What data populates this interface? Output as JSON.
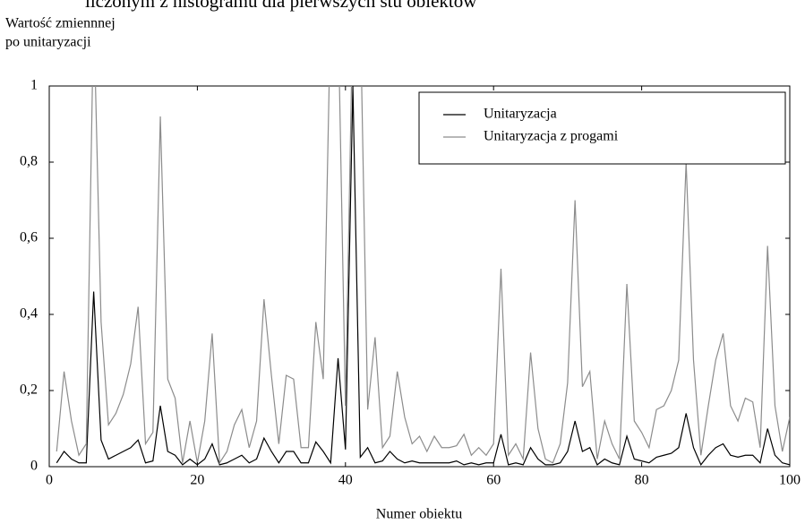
{
  "chart_data": {
    "type": "line",
    "title": "liczonym z histogramu dla pierwszych stu obiektów",
    "ylabel": [
      "Wartość zmiennnej",
      "po unitaryzacji"
    ],
    "xlabel": "Numer obiektu",
    "x": [
      1,
      2,
      3,
      4,
      5,
      6,
      7,
      8,
      9,
      10,
      11,
      12,
      13,
      14,
      15,
      16,
      17,
      18,
      19,
      20,
      21,
      22,
      23,
      24,
      25,
      26,
      27,
      28,
      29,
      30,
      31,
      32,
      33,
      34,
      35,
      36,
      37,
      38,
      39,
      40,
      41,
      42,
      43,
      44,
      45,
      46,
      47,
      48,
      49,
      50,
      51,
      52,
      53,
      54,
      55,
      56,
      57,
      58,
      59,
      60,
      61,
      62,
      63,
      64,
      65,
      66,
      67,
      68,
      69,
      70,
      71,
      72,
      73,
      74,
      75,
      76,
      77,
      78,
      79,
      80,
      81,
      82,
      83,
      84,
      85,
      86,
      87,
      88,
      89,
      90,
      91,
      92,
      93,
      94,
      95,
      96,
      97,
      98,
      99,
      100
    ],
    "series": [
      {
        "name": "Unitaryzacja",
        "color": "#000000",
        "values": [
          0.01,
          0.04,
          0.02,
          0.01,
          0.01,
          0.46,
          0.07,
          0.02,
          0.03,
          0.04,
          0.05,
          0.07,
          0.01,
          0.015,
          0.16,
          0.04,
          0.03,
          0.005,
          0.02,
          0.005,
          0.02,
          0.06,
          0.005,
          0.01,
          0.02,
          0.03,
          0.01,
          0.02,
          0.075,
          0.04,
          0.01,
          0.04,
          0.04,
          0.01,
          0.01,
          0.065,
          0.04,
          0.01,
          0.285,
          0.045,
          1,
          0.025,
          0.05,
          0.01,
          0.015,
          0.04,
          0.02,
          0.01,
          0.015,
          0.01,
          0.01,
          0.01,
          0.01,
          0.01,
          0.015,
          0.005,
          0.01,
          0.005,
          0.01,
          0.01,
          0.085,
          0.005,
          0.01,
          0.005,
          0.05,
          0.02,
          0.005,
          0.005,
          0.01,
          0.04,
          0.12,
          0.04,
          0.05,
          0.005,
          0.02,
          0.01,
          0.005,
          0.08,
          0.02,
          0.015,
          0.01,
          0.025,
          0.03,
          0.035,
          0.05,
          0.14,
          0.05,
          0.005,
          0.03,
          0.05,
          0.06,
          0.03,
          0.025,
          0.03,
          0.03,
          0.01,
          0.1,
          0.03,
          0.01,
          0.005
        ]
      },
      {
        "name": "Unitaryzacja z progami",
        "color": "#8c8c8c",
        "values": [
          0.04,
          0.25,
          0.12,
          0.03,
          0.06,
          1.2,
          0.38,
          0.11,
          0.14,
          0.19,
          0.27,
          0.42,
          0.06,
          0.09,
          0.92,
          0.23,
          0.18,
          0.01,
          0.12,
          0.01,
          0.12,
          0.35,
          0.01,
          0.04,
          0.11,
          0.15,
          0.05,
          0.12,
          0.44,
          0.24,
          0.06,
          0.24,
          0.23,
          0.05,
          0.05,
          0.38,
          0.23,
          1.2,
          1.2,
          0.16,
          1.2,
          1.2,
          0.15,
          0.34,
          0.05,
          0.08,
          0.25,
          0.13,
          0.06,
          0.08,
          0.04,
          0.08,
          0.05,
          0.05,
          0.055,
          0.085,
          0.03,
          0.05,
          0.03,
          0.06,
          0.52,
          0.03,
          0.06,
          0.02,
          0.3,
          0.1,
          0.02,
          0.01,
          0.06,
          0.22,
          0.7,
          0.21,
          0.25,
          0.02,
          0.12,
          0.06,
          0.02,
          0.48,
          0.12,
          0.09,
          0.05,
          0.15,
          0.16,
          0.2,
          0.28,
          0.8,
          0.28,
          0.03,
          0.16,
          0.28,
          0.35,
          0.16,
          0.12,
          0.18,
          0.17,
          0.05,
          0.58,
          0.16,
          0.04,
          0.13
        ]
      }
    ],
    "xlim": [
      0,
      100
    ],
    "xticks": [
      0,
      20,
      40,
      60,
      80,
      100
    ],
    "ylim": [
      0,
      1
    ],
    "yticks": [
      0,
      {
        "value": 0.2,
        "label": "0,2"
      },
      {
        "value": 0.4,
        "label": "0,4"
      },
      {
        "value": 0.6,
        "label": "0,6"
      },
      {
        "value": 0.8,
        "label": "0,8"
      },
      1
    ],
    "legend": "upper right"
  }
}
